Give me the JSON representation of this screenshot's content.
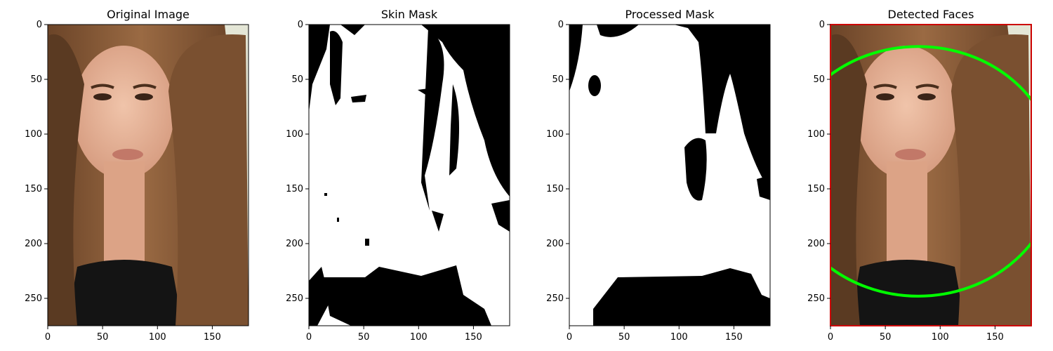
{
  "panels": [
    {
      "id": "original",
      "title": "Original Image",
      "kind": "photo",
      "image_width": 183,
      "image_height": 275,
      "x_ticks": [
        0,
        50,
        100,
        150
      ],
      "y_ticks": [
        0,
        50,
        100,
        150,
        200,
        250
      ]
    },
    {
      "id": "skin-mask",
      "title": "Skin Mask",
      "kind": "binary-mask",
      "image_width": 183,
      "image_height": 275,
      "x_ticks": [
        0,
        50,
        100,
        150
      ],
      "y_ticks": [
        0,
        50,
        100,
        150,
        200,
        250
      ]
    },
    {
      "id": "processed-mask",
      "title": "Processed Mask",
      "kind": "binary-mask",
      "image_width": 183,
      "image_height": 275,
      "x_ticks": [
        0,
        50,
        100,
        150
      ],
      "y_ticks": [
        0,
        50,
        100,
        150,
        200,
        250
      ]
    },
    {
      "id": "detected-faces",
      "title": "Detected Faces",
      "kind": "photo-with-detection",
      "image_width": 183,
      "image_height": 275,
      "x_ticks": [
        0,
        50,
        100,
        150
      ],
      "y_ticks": [
        0,
        50,
        100,
        150,
        200,
        250
      ],
      "detection": {
        "shape": "ellipse",
        "center_x": 80,
        "center_y": 134,
        "radius_x": 126,
        "radius_y": 114,
        "color": "#00ff00",
        "box_color": "#cc0000"
      }
    }
  ],
  "colors": {
    "background": "#ffffff",
    "mask_on": "#ffffff",
    "mask_off": "#000000",
    "hair_dark": "#5a3a22",
    "hair_mid": "#8b5e3c",
    "hair_light": "#b07a4f",
    "skin": "#e9b79c",
    "skin_shadow": "#d9a084",
    "backdrop": "#d8dcc4",
    "shirt": "#141414",
    "lips": "#c27868"
  }
}
